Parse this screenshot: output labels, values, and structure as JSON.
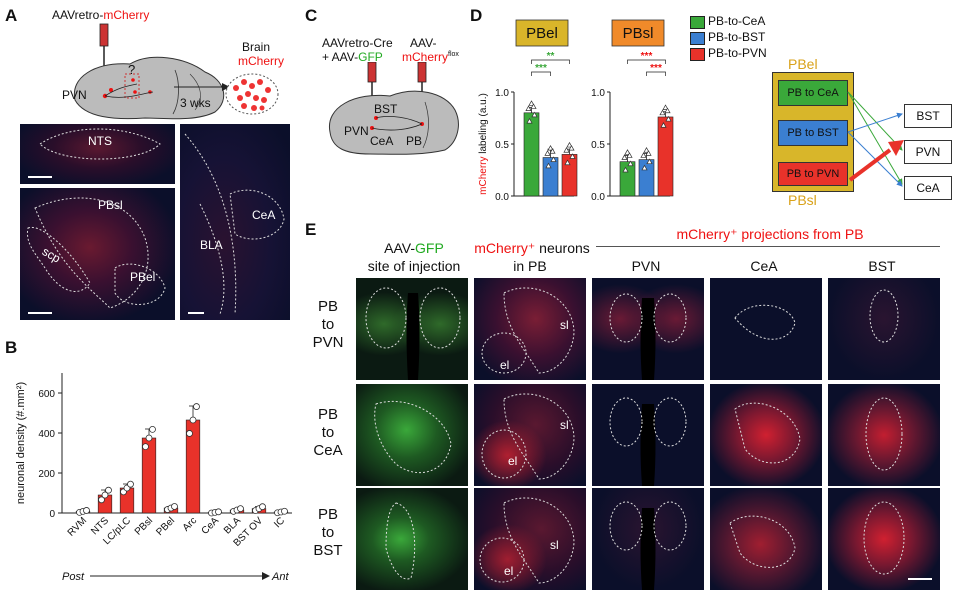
{
  "panels": {
    "A": "A",
    "B": "B",
    "C": "C",
    "D": "D",
    "E": "E"
  },
  "panelA": {
    "virus_prefix": "AAVretro-",
    "virus_red": "mCherry",
    "brain_label": "Brain",
    "brain_red": "mCherry",
    "pvn": "PVN",
    "question": "?",
    "time": "3 wks",
    "micro_labels": {
      "nts": "NTS",
      "pbsl": "PBsl",
      "scp": "scp",
      "pbel": "PBel",
      "bla": "BLA",
      "cea": "CeA"
    }
  },
  "panelB": {
    "ylabel": "neuronal density (#.mm²)",
    "post": "Post",
    "ant": "Ant"
  },
  "panelC": {
    "line1": "AAVretro-Cre",
    "line2_prefix": "+ AAV-",
    "line2_green": "GFP",
    "aav_label": "AAV-",
    "mcherry": "mCherry",
    "flox": "flox",
    "bst": "BST",
    "pvn": "PVN",
    "cea": "CeA",
    "pb": "PB"
  },
  "panelD": {
    "pbel_title": "PBel",
    "pbsl_title": "PBsl",
    "ylabel_red": "mCherry",
    "ylabel_rest": " labeling (a.u.)",
    "legend": [
      {
        "label": "PB-to-CeA",
        "color": "#3aa83a"
      },
      {
        "label": "PB-to-BST",
        "color": "#3b7fd1"
      },
      {
        "label": "PB-to-PVN",
        "color": "#e8322a"
      }
    ],
    "sig_pbel_top": "**",
    "sig_pbel_bottom": "***",
    "sig_pbsl_top": "***",
    "sig_pbsl_bottom": "***",
    "schematic": {
      "pbel": "PBel",
      "pbsl": "PBsl",
      "to_cea": "PB to CeA",
      "to_bst": "PB to BST",
      "to_pvn": "PB to PVN",
      "targets": [
        "BST",
        "PVN",
        "CeA"
      ]
    }
  },
  "panelE": {
    "col1_prefix": "AAV-",
    "col1_green": "GFP",
    "col1_line2": "site of injection",
    "col2_red": "mCherry⁺",
    "col2_rest": " neurons",
    "col2_line2": "in PB",
    "proj_header": "mCherry⁺ projections from PB",
    "cols": [
      "PVN",
      "CeA",
      "BST"
    ],
    "rows": [
      {
        "l1": "PB",
        "l2": "to",
        "l3": "PVN"
      },
      {
        "l1": "PB",
        "l2": "to",
        "l3": "CeA"
      },
      {
        "l1": "PB",
        "l2": "to",
        "l3": "BST"
      }
    ],
    "sl": "sl",
    "el": "el"
  },
  "chart_data": [
    {
      "type": "bar",
      "title": "",
      "xlabel": "",
      "ylabel": "neuronal density (#.mm²)",
      "ylim": [
        0,
        700
      ],
      "yticks": [
        0,
        200,
        400,
        600
      ],
      "categories": [
        "RVM",
        "NTS",
        "LC/pLC",
        "PBsl",
        "PBel",
        "Arc",
        "CeA",
        "BLA",
        "BST OV",
        "IC"
      ],
      "values": [
        8,
        90,
        125,
        375,
        25,
        465,
        3,
        15,
        22,
        5
      ],
      "errors": [
        5,
        25,
        20,
        45,
        8,
        70,
        3,
        7,
        10,
        4
      ],
      "color": "#e8322a"
    },
    {
      "type": "bar",
      "title": "PBel",
      "ylabel": "mCherry labeling (a.u.)",
      "ylim": [
        0,
        1.0
      ],
      "yticks": [
        0.0,
        0.5,
        1.0
      ],
      "categories": [
        "PB-to-CeA",
        "PB-to-BST",
        "PB-to-PVN"
      ],
      "values": [
        0.8,
        0.37,
        0.4
      ],
      "errors": [
        0.05,
        0.08,
        0.05
      ],
      "colors": [
        "#3aa83a",
        "#3b7fd1",
        "#e8322a"
      ]
    },
    {
      "type": "bar",
      "title": "PBsl",
      "ylim": [
        0,
        1.0
      ],
      "yticks": [
        0.0,
        0.5,
        1.0
      ],
      "categories": [
        "PB-to-CeA",
        "PB-to-BST",
        "PB-to-PVN"
      ],
      "values": [
        0.33,
        0.35,
        0.76
      ],
      "errors": [
        0.06,
        0.06,
        0.05
      ],
      "colors": [
        "#3aa83a",
        "#3b7fd1",
        "#e8322a"
      ]
    }
  ]
}
